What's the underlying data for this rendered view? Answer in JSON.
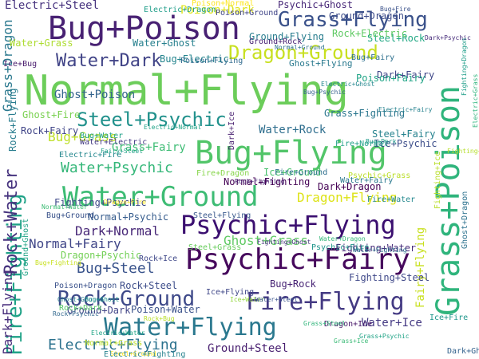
{
  "wordcloud": {
    "words": [
      {
        "text": "Normal+Flying",
        "color": "#6ccd5a"
      },
      {
        "text": "Grass+Poison",
        "color": "#2fb47c"
      },
      {
        "text": "Bug+Flying",
        "color": "#52c569"
      },
      {
        "text": "Bug+Poison",
        "color": "#482173"
      },
      {
        "text": "Psychic+Fairy",
        "color": "#46085c"
      },
      {
        "text": "Water+Ground",
        "color": "#3dbc74"
      },
      {
        "text": "Psychic+Flying",
        "color": "#3b0f70"
      },
      {
        "text": "Water+Flying",
        "color": "#2a788e"
      },
      {
        "text": "Fire+Flying",
        "color": "#443a83"
      },
      {
        "text": "Rock+Ground",
        "color": "#3e4989"
      },
      {
        "text": "Grass+Flying",
        "color": "#3b528b"
      },
      {
        "text": "Dragon+Ground",
        "color": "#c8e020"
      },
      {
        "text": "Fire+Fighting",
        "color": "#1fa287"
      },
      {
        "text": "Steel+Psychic",
        "color": "#21918c"
      },
      {
        "text": "Water+Dark",
        "color": "#414487"
      },
      {
        "text": "Rock+Water",
        "color": "#46337e"
      },
      {
        "text": "Dark+Flying",
        "color": "#472d7b"
      },
      {
        "text": "Rock+Flying",
        "color": "#287c8e"
      },
      {
        "text": "Water+Psychic",
        "color": "#35b779"
      },
      {
        "text": "Bug+Steel",
        "color": "#3a548c"
      },
      {
        "text": "Electric+Flying",
        "color": "#2c728e"
      },
      {
        "text": "Ghost+Grass",
        "color": "#5ec962"
      },
      {
        "text": "Dragon+Flying",
        "color": "#dde318"
      },
      {
        "text": "Dark+Normal",
        "color": "#482878"
      },
      {
        "text": "Normal+Fairy",
        "color": "#404688"
      },
      {
        "text": "Water+Ice",
        "color": "#443983"
      },
      {
        "text": "Grass+Dragon",
        "color": "#2a788e"
      },
      {
        "text": "Bug+Grass",
        "color": "#bddf26"
      },
      {
        "text": "Grass+Fairy",
        "color": "#3dbc74"
      },
      {
        "text": "Water+Rock",
        "color": "#2e6e8e"
      },
      {
        "text": "Poison+Dark",
        "color": "#dde318"
      },
      {
        "text": "Ground+Steel",
        "color": "#481f70"
      },
      {
        "text": "Fairy+Flying",
        "color": "#c8e020"
      },
      {
        "text": "Ghost+Poison",
        "color": "#33638d"
      },
      {
        "text": "Ground+Dragon",
        "color": "#3e4c8a"
      },
      {
        "text": "Electric+Steel",
        "color": "#46327e"
      },
      {
        "text": "Water+Ghost",
        "color": "#27808e"
      },
      {
        "text": "Water+Grass",
        "color": "#addc30"
      },
      {
        "text": "Bug+Electric",
        "color": "#25858e"
      },
      {
        "text": "Dark+Fairy",
        "color": "#3f4788"
      },
      {
        "text": "Poison+Fairy",
        "color": "#20a486"
      },
      {
        "text": "Ground+Flying",
        "color": "#287d8e"
      },
      {
        "text": "Ghost+Flying",
        "color": "#29798e"
      },
      {
        "text": "Steel+Fairy",
        "color": "#26828e"
      },
      {
        "text": "Ice+Psychic",
        "color": "#3d4e8a"
      },
      {
        "text": "Ice+Ground",
        "color": "#4ac16d"
      },
      {
        "text": "Bug+Rock",
        "color": "#482475"
      },
      {
        "text": "Dark+Dragon",
        "color": "#440154"
      },
      {
        "text": "Fighting+Steel",
        "color": "#3f4889"
      },
      {
        "text": "Fighting+Water",
        "color": "#472c7a"
      },
      {
        "text": "Ground+Dark",
        "color": "#414487"
      },
      {
        "text": "Poison+Water",
        "color": "#3b528b"
      },
      {
        "text": "Normal+Psychic",
        "color": "#365c8d"
      },
      {
        "text": "Normal+Fighting",
        "color": "#440154"
      },
      {
        "text": "Psychic+Ghost",
        "color": "#482878"
      },
      {
        "text": "Dragon+Psychic",
        "color": "#73d056"
      },
      {
        "text": "Grass+Fighting",
        "color": "#2a768e"
      },
      {
        "text": "Steel+Rock",
        "color": "#22a884"
      },
      {
        "text": "Rock+Electric",
        "color": "#5ec962"
      },
      {
        "text": "Poison+Normal",
        "color": "#fde725"
      },
      {
        "text": "Fighting+Psychic",
        "color": "#3e4989"
      },
      {
        "text": "Ghost+Fire",
        "color": "#7ad151"
      },
      {
        "text": "Ghost+Dragon",
        "color": "#2c728e"
      },
      {
        "text": "Ice+Bug",
        "color": "#481b6d"
      },
      {
        "text": "Dragon+Ice",
        "color": "#481769"
      },
      {
        "text": "Fire+Ground",
        "color": "#2e6f8e"
      },
      {
        "text": "Fire+Dragon",
        "color": "#86d549"
      },
      {
        "text": "Fire+Water",
        "color": "#23888e"
      },
      {
        "text": "Fire+Normal",
        "color": "#1f9f88"
      },
      {
        "text": "Bug+Ground",
        "color": "#3a538b"
      },
      {
        "text": "Bug+Water",
        "color": "#1fa188"
      },
      {
        "text": "Water+Electric",
        "color": "#443a83"
      },
      {
        "text": "Electric+Fire",
        "color": "#24878e"
      },
      {
        "text": "Electric+Dragon",
        "color": "#1f9e89"
      },
      {
        "text": "Steel+Flying",
        "color": "#38588c"
      },
      {
        "text": "Steel+Grass",
        "color": "#67cc5c"
      },
      {
        "text": "Steel+Ground",
        "color": "#fde725"
      },
      {
        "text": "Rock+Steel",
        "color": "#3d4d8a"
      },
      {
        "text": "Rock+Dark",
        "color": "#55c667"
      },
      {
        "text": "Rock+Bug",
        "color": "#b8de29"
      },
      {
        "text": "Rock+Fighting",
        "color": "#482576"
      },
      {
        "text": "Rock+Fairy",
        "color": "#404588"
      },
      {
        "text": "Rock+Psychic",
        "color": "#31688e"
      },
      {
        "text": "Rock+Ice",
        "color": "#3f4889"
      },
      {
        "text": "Psychic+Grass",
        "color": "#bade28"
      },
      {
        "text": "Psychic+Fire",
        "color": "#1f958b"
      },
      {
        "text": "Poison+Flying",
        "color": "#306a8e"
      },
      {
        "text": "Poison+Dragon",
        "color": "#3b528b"
      },
      {
        "text": "Poison+Ground",
        "color": "#404588"
      },
      {
        "text": "Grass+Psychic",
        "color": "#20a386"
      },
      {
        "text": "Grass+Steel",
        "color": "#31b57b"
      },
      {
        "text": "Grass+Ice",
        "color": "#3aba76"
      },
      {
        "text": "Ghost+Ground",
        "color": "#287d8e"
      },
      {
        "text": "Ground+Rock",
        "color": "#482173"
      },
      {
        "text": "Ground+Ghost",
        "color": "#20a386"
      },
      {
        "text": "Ice+Flying",
        "color": "#3f4788"
      },
      {
        "text": "Ice+Water",
        "color": "#95d840"
      },
      {
        "text": "Ice+Fire",
        "color": "#1f968b"
      },
      {
        "text": "Dark+Ghost",
        "color": "#33628d"
      },
      {
        "text": "Dark+Ice",
        "color": "#481f70"
      },
      {
        "text": "Dark+Psychic",
        "color": "#472d7b"
      },
      {
        "text": "Bug+Fire",
        "color": "#3b528b"
      },
      {
        "text": "Bug+Fairy",
        "color": "#2d708e"
      },
      {
        "text": "Bug+Fighting",
        "color": "#c8e020"
      },
      {
        "text": "Bug+Psychic",
        "color": "#34608d"
      },
      {
        "text": "Bug+Dark",
        "color": "#1f9a8a"
      },
      {
        "text": "Bug+Ghost",
        "color": "#21918c"
      },
      {
        "text": "Water+Steel",
        "color": "#3a548c"
      },
      {
        "text": "Water+Dragon",
        "color": "#35b779"
      },
      {
        "text": "Water+Fairy",
        "color": "#2a788e"
      },
      {
        "text": "Water+Fighting",
        "color": "#2d708e"
      },
      {
        "text": "Normal+Ground",
        "color": "#2c728e"
      },
      {
        "text": "Normal+Water",
        "color": "#3dbc74"
      },
      {
        "text": "Normal+Grass",
        "color": "#bddf26"
      },
      {
        "text": "Dragon+Fire",
        "color": "#fde725"
      },
      {
        "text": "Fairy+Steel",
        "color": "#1fa088"
      },
      {
        "text": "Fighting+Dark",
        "color": "#b5de2b"
      },
      {
        "text": "Fighting+Dragon",
        "color": "#1f9e89"
      },
      {
        "text": "Fighting+Ghost",
        "color": "#46337e"
      },
      {
        "text": "Fighting+Ice",
        "color": "#b8de29"
      },
      {
        "text": "Electric+Normal",
        "color": "#1fa287"
      },
      {
        "text": "Electric+Fairy",
        "color": "#26828e"
      },
      {
        "text": "Electric+Grass",
        "color": "#2fb47c"
      },
      {
        "text": "Electric+Water",
        "color": "#20a486"
      },
      {
        "text": "Electric+Fighting",
        "color": "#26828e"
      },
      {
        "text": "Electric+Ghost",
        "color": "#24878e"
      }
    ]
  }
}
